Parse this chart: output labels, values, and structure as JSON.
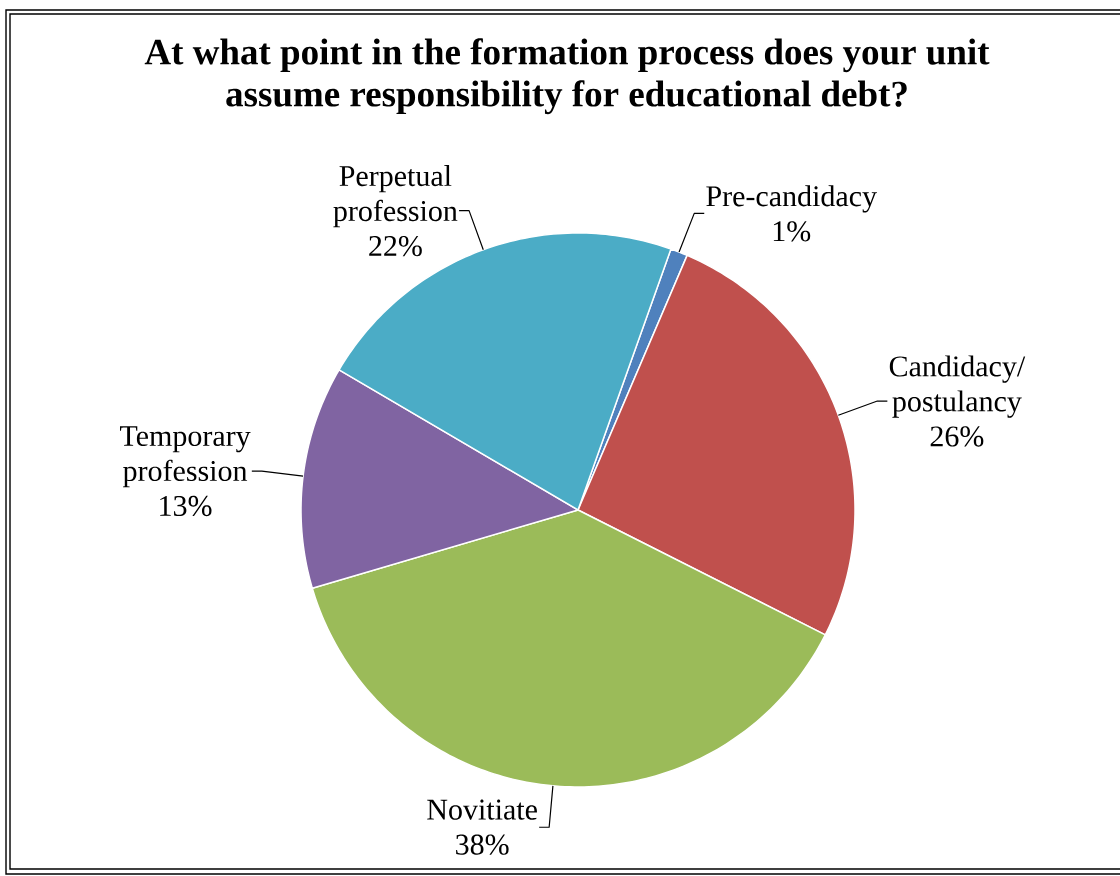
{
  "chart_data": {
    "type": "pie",
    "title": "At what point in the formation process does your unit assume responsibility for educational debt?",
    "categories": [
      "Pre-candidacy",
      "Candidacy/ postulancy",
      "Novitiate",
      "Temporary profession",
      "Perpetual profession"
    ],
    "values": [
      1,
      26,
      38,
      13,
      22
    ],
    "colors": [
      "#4f81bd",
      "#c0504d",
      "#9bbb59",
      "#8064a2",
      "#4bacc6"
    ],
    "value_labels": [
      "1%",
      "26%",
      "38%",
      "13%",
      "22%"
    ]
  }
}
